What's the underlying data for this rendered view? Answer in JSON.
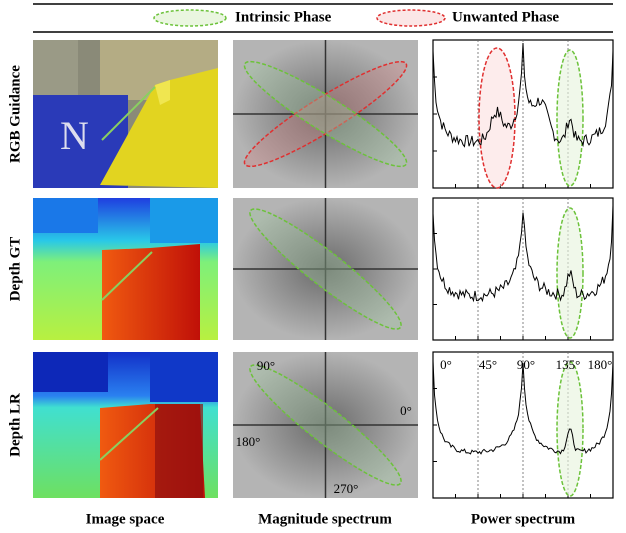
{
  "legend": [
    {
      "label": "Intrinsic Phase"
    },
    {
      "label": "Unwanted Phase"
    }
  ],
  "rows": [
    {
      "label": "RGB Guidance"
    },
    {
      "label": "Depth GT"
    },
    {
      "label": "Depth LR"
    }
  ],
  "columns": [
    {
      "label": "Image space"
    },
    {
      "label": "Magnitude spectrum"
    },
    {
      "label": "Power spectrum"
    }
  ],
  "magnitude_angles": [
    "90°",
    "0°",
    "180°",
    "270°"
  ],
  "power_angles": [
    "0°",
    "45°",
    "90°",
    "135°",
    "180°"
  ]
}
